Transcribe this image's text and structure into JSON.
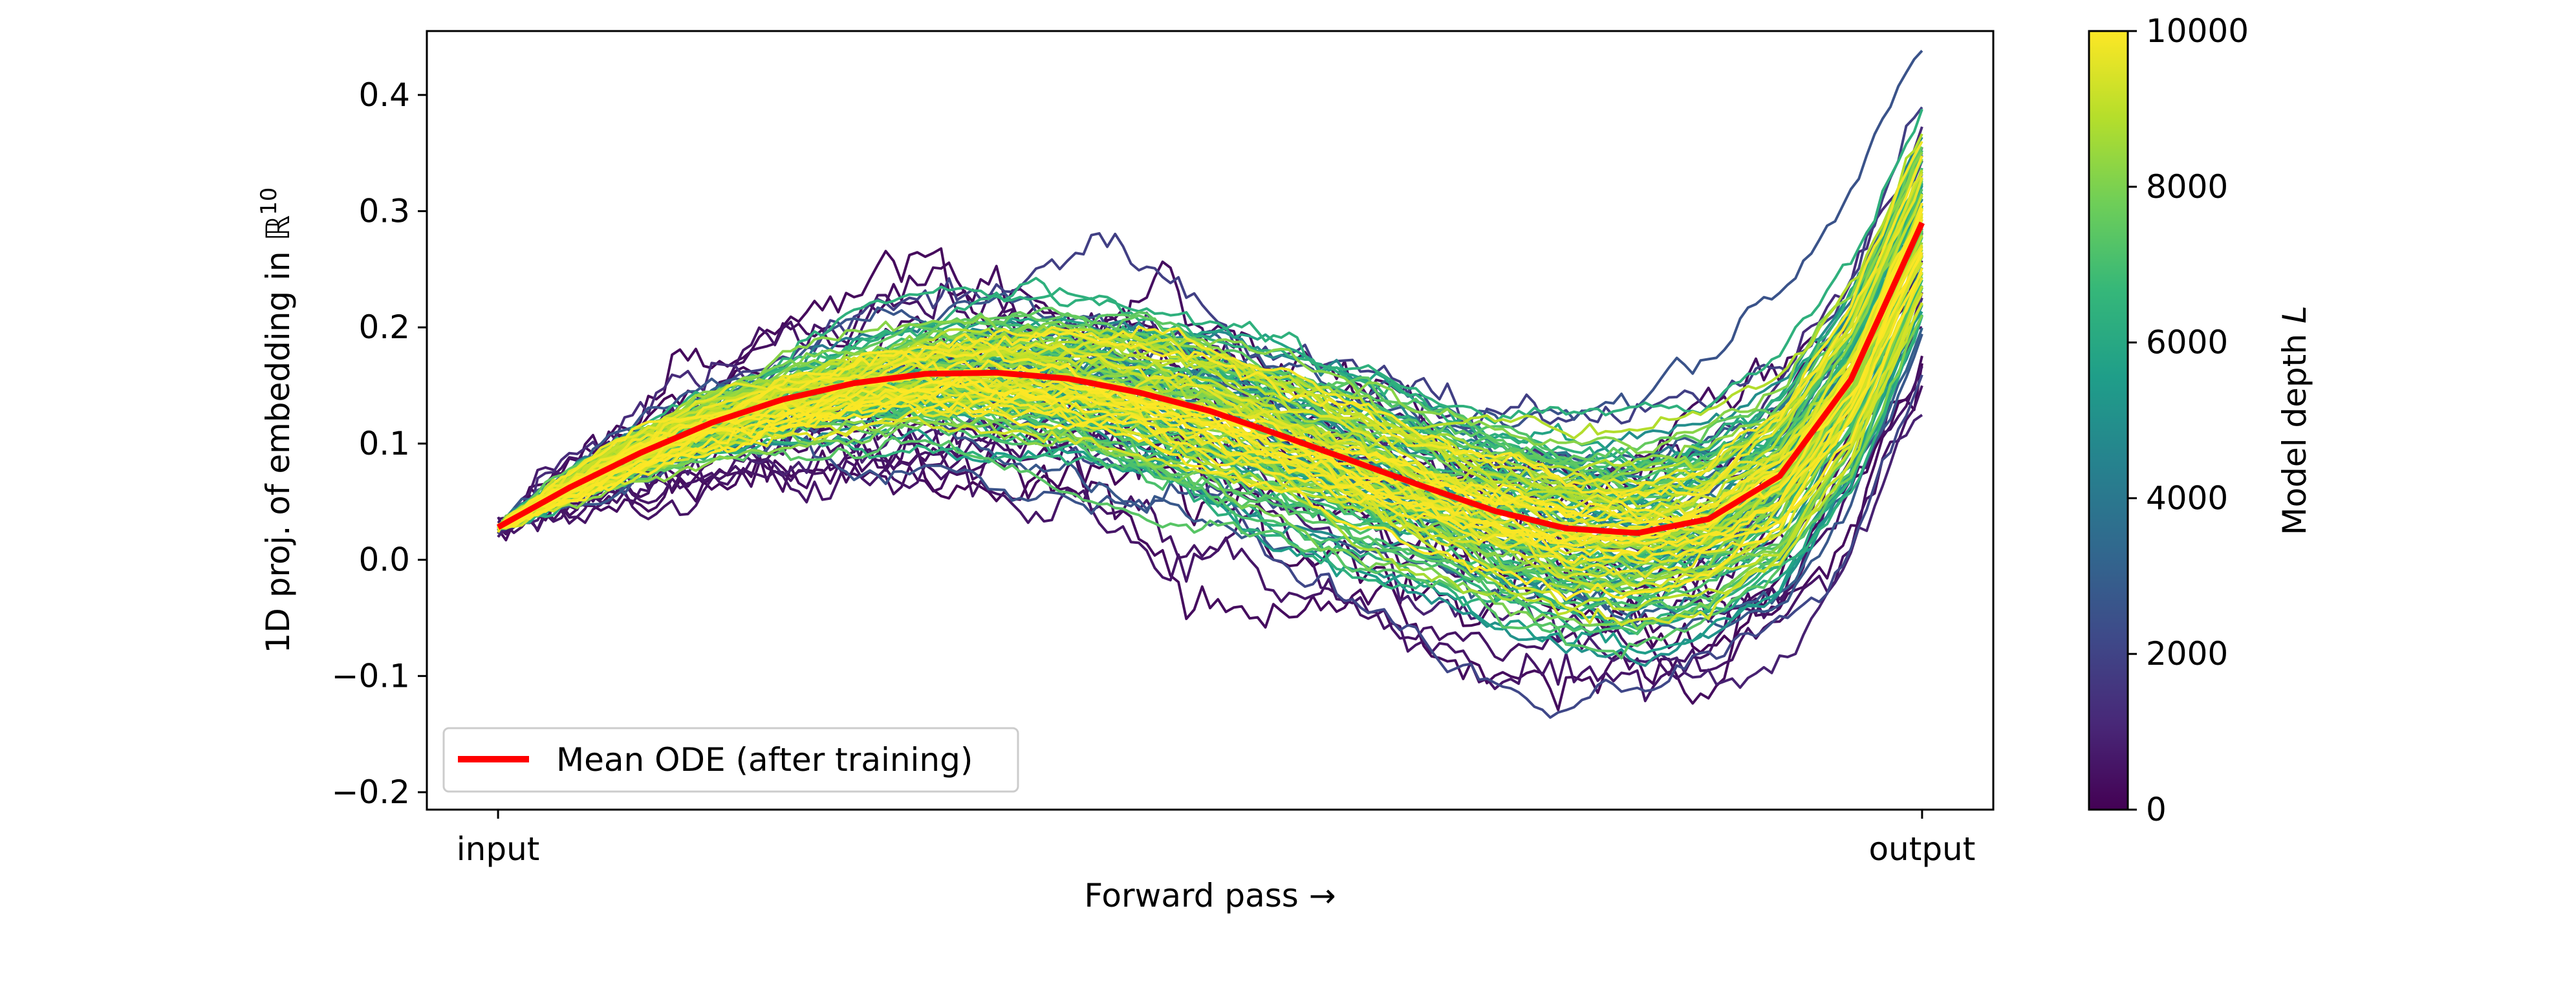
{
  "chart_data": {
    "type": "line",
    "title": "",
    "xlabel": "Forward pass →",
    "ylabel_main": "1D proj. of embedding in ℝ",
    "ylabel_sup": "10",
    "x_ticks": [
      {
        "label": "input",
        "value": 0
      },
      {
        "label": "output",
        "value": 1
      }
    ],
    "xlim": [
      -0.05,
      1.05
    ],
    "ylim": [
      -0.215,
      0.455
    ],
    "y_ticks": [
      -0.2,
      -0.1,
      0.0,
      0.1,
      0.2,
      0.3,
      0.4
    ],
    "y_tick_labels": [
      "−0.2",
      "−0.1",
      "0.0",
      "0.1",
      "0.2",
      "0.3",
      "0.4"
    ],
    "grid": false,
    "legend": {
      "position": "lower-left",
      "entries": [
        {
          "label": "Mean ODE (after training)",
          "color": "#ff0000"
        }
      ]
    },
    "mean_ode": {
      "name": "Mean ODE (after training)",
      "color": "#ff0000",
      "x": [
        0.0,
        0.05,
        0.1,
        0.15,
        0.2,
        0.25,
        0.3,
        0.35,
        0.4,
        0.45,
        0.5,
        0.55,
        0.6,
        0.65,
        0.7,
        0.75,
        0.8,
        0.85,
        0.9,
        0.95,
        1.0
      ],
      "y": [
        0.028,
        0.062,
        0.092,
        0.118,
        0.138,
        0.152,
        0.16,
        0.161,
        0.156,
        0.144,
        0.128,
        0.107,
        0.085,
        0.063,
        0.042,
        0.027,
        0.023,
        0.035,
        0.072,
        0.155,
        0.29
      ]
    },
    "sample_paths": {
      "count": 140,
      "depth_range": [
        0,
        10000
      ],
      "color_by": "Model depth L",
      "description_note": "stochastic trajectories around the mean ODE; spread decreases as depth increases"
    },
    "colorbar": {
      "label_main": "Model depth ",
      "label_italic": "L",
      "min": 0,
      "max": 10000,
      "ticks": [
        0,
        2000,
        4000,
        6000,
        8000,
        10000
      ],
      "colormap": "viridis",
      "stops": [
        "#440154",
        "#482878",
        "#3e4a89",
        "#31688e",
        "#26828e",
        "#1f9e89",
        "#35b779",
        "#6ece58",
        "#b5de2b",
        "#fde725"
      ]
    }
  }
}
